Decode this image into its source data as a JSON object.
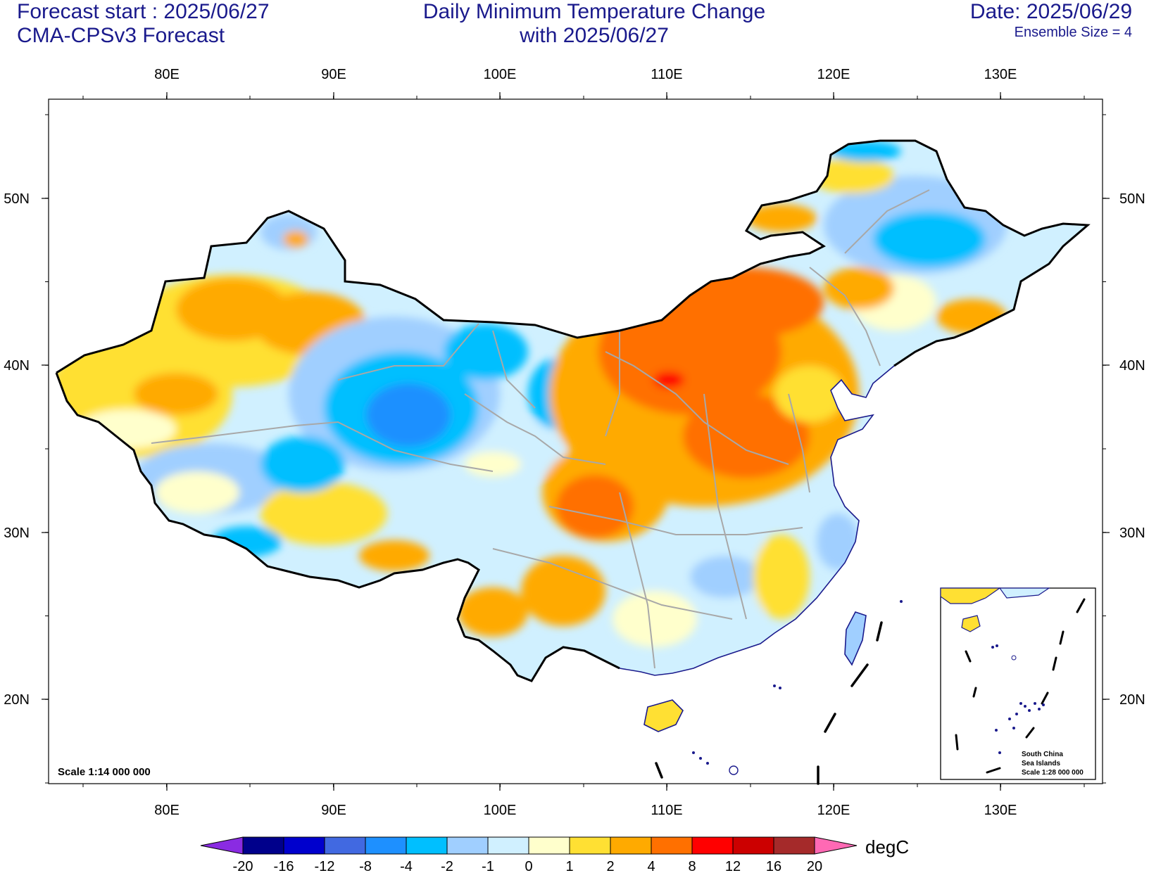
{
  "header": {
    "forecast_start": "Forecast start : 2025/06/27",
    "model": "CMA-CPSv3 Forecast",
    "title_line1": "Daily Minimum Temperature Change",
    "title_line2": "with 2025/06/27",
    "date": "Date: 2025/06/29",
    "ensemble": "Ensemble Size = 4"
  },
  "map": {
    "lon_ticks": [
      "80E",
      "90E",
      "100E",
      "110E",
      "120E",
      "130E"
    ],
    "lat_ticks": [
      "50N",
      "40N",
      "30N",
      "20N"
    ],
    "scale_label": "Scale 1:14 000 000",
    "inset_labels": [
      "South China",
      "Sea Islands",
      "Scale 1:28 000 000"
    ]
  },
  "colorbar": {
    "unit": "degC",
    "levels": [
      "-20",
      "-16",
      "-12",
      "-8",
      "-4",
      "-2",
      "-1",
      "0",
      "1",
      "2",
      "4",
      "8",
      "12",
      "16",
      "20"
    ],
    "colors": [
      "#8a2be2",
      "#00008b",
      "#0000cd",
      "#4169e1",
      "#1e90ff",
      "#00bfff",
      "#a0cfff",
      "#d0f0ff",
      "#ffffcc",
      "#ffe033",
      "#ffaa00",
      "#ff7000",
      "#ff0000",
      "#cc0000",
      "#a52a2a",
      "#ff69b4"
    ]
  }
}
